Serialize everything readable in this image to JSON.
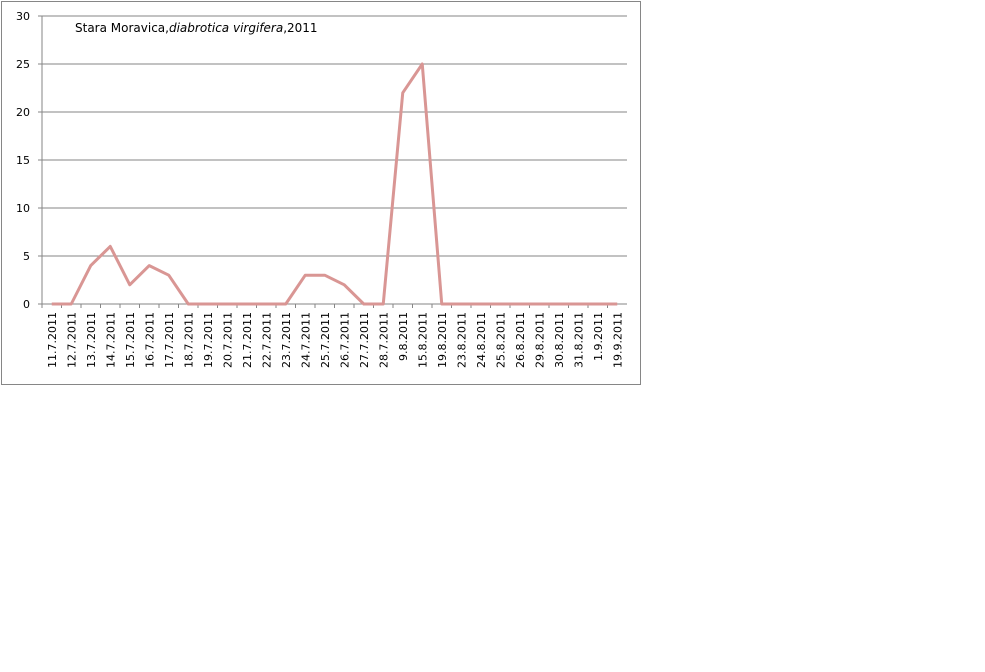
{
  "chart_data": {
    "type": "line",
    "title": [
      "Stara Moravica,",
      "diabrotica virgifera",
      ",2011"
    ],
    "categories": [
      "11.7.2011",
      "12.7.2011",
      "13.7.2011",
      "14.7.2011",
      "15.7.2011",
      "16.7.2011",
      "17.7.2011",
      "18.7.2011",
      "19.7.2011",
      "20.7.2011",
      "21.7.2011",
      "22.7.2011",
      "23.7.2011",
      "24.7.2011",
      "25.7.2011",
      "26.7.2011",
      "27.7.2011",
      "28.7.2011",
      "9.8.2011",
      "15.8.2011",
      "19.8.2011",
      "23.8.2011",
      "24.8.2011",
      "25.8.2011",
      "26.8.2011",
      "29.8.2011",
      "30.8.2011",
      "31.8.2011",
      "1.9.2011",
      "19.9.2011"
    ],
    "values": [
      0,
      0,
      4,
      6,
      2,
      4,
      3,
      0,
      0,
      0,
      0,
      0,
      0,
      3,
      3,
      2,
      0,
      0,
      22,
      25,
      0,
      0,
      0,
      0,
      0,
      0,
      0,
      0,
      0,
      0
    ],
    "color": "#d99694",
    "ylim": [
      0,
      30
    ],
    "yticks": [
      0,
      5,
      10,
      15,
      20,
      25,
      30
    ],
    "grid": true
  }
}
